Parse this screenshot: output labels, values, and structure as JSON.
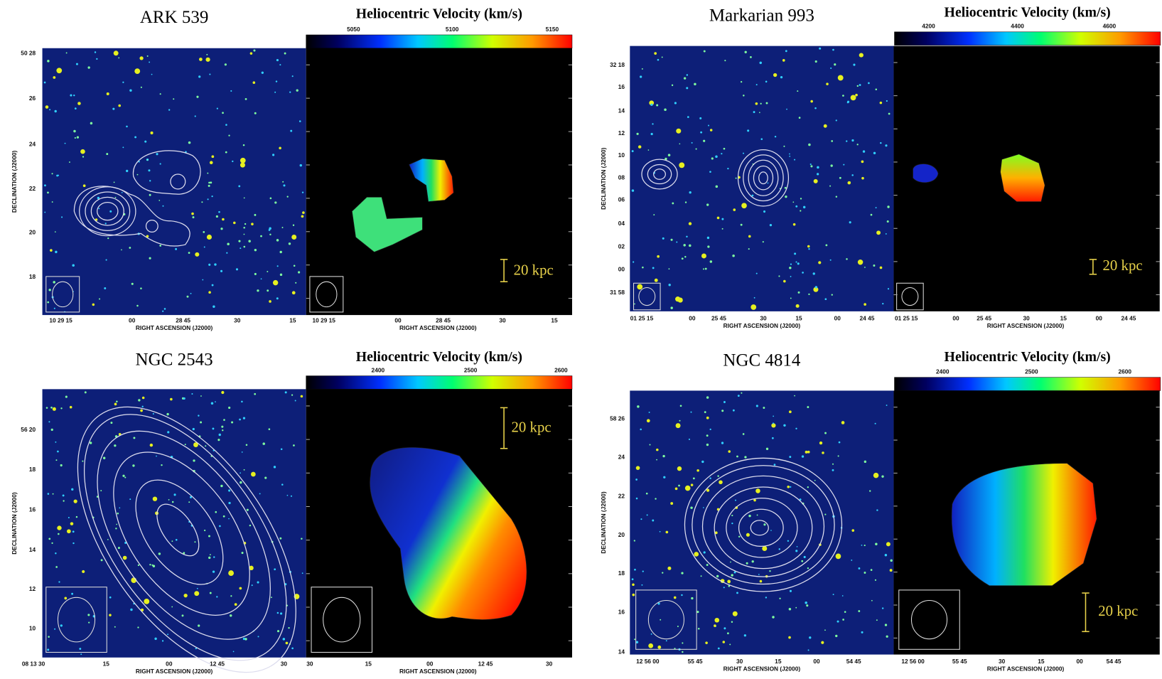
{
  "panels": [
    {
      "title": "ARK 539",
      "colorbar": {
        "title": "Heliocentric Velocity (km/s)",
        "ticks": [
          "5050",
          "5100",
          "5150"
        ]
      },
      "dec_label": "DECLINATION (J2000)",
      "dec_ticks": [
        "50 28",
        "26",
        "24",
        "22",
        "20",
        "18"
      ],
      "ra_label_optical": "RIGHT ASCENSION (J2000)",
      "ra_ticks_optical": [
        "10 29 15",
        "00",
        "28 45",
        "30",
        "15"
      ],
      "ra_label_velocity": "RIGHT ASCENSION (J2000)",
      "ra_ticks_velocity": [
        "10 29 15",
        "00",
        "28 45",
        "30",
        "15"
      ],
      "scale_bar": "20 kpc"
    },
    {
      "title": "Markarian 993",
      "colorbar": {
        "title": "Heliocentric Velocity (km/s)",
        "ticks": [
          "4200",
          "4400",
          "4600"
        ]
      },
      "dec_label": "DECLINATION (J2000)",
      "dec_ticks": [
        "32 18",
        "16",
        "14",
        "12",
        "10",
        "08",
        "06",
        "04",
        "02",
        "00",
        "31 58"
      ],
      "ra_label_optical": "RIGHT ASCENSION (J2000)",
      "ra_ticks_optical": [
        "01 25 15",
        "00",
        "25 45",
        "30",
        "15",
        "00",
        "24 45"
      ],
      "ra_label_velocity": "RIGHT ASCENSION (J2000)",
      "ra_ticks_velocity": [
        "01 25 15",
        "00",
        "25 45",
        "30",
        "15",
        "00",
        "24 45"
      ],
      "scale_bar": "20 kpc"
    },
    {
      "title": "NGC 2543",
      "colorbar": {
        "title": "Heliocentric Velocity (km/s)",
        "ticks": [
          "2400",
          "2500",
          "2600"
        ]
      },
      "dec_label": "DECLINATION (J2000)",
      "dec_ticks": [
        "56 20",
        "18",
        "16",
        "14",
        "12",
        "10"
      ],
      "ra_label_optical": "RIGHT ASCENSION (J2000)",
      "ra_ticks_optical": [
        "08 13 30",
        "15",
        "00",
        "12 45",
        "30"
      ],
      "ra_label_velocity": "RIGHT ASCENSION (J2000)",
      "ra_ticks_velocity": [
        "30",
        "15",
        "00",
        "12 45",
        "30"
      ],
      "scale_bar": "20 kpc"
    },
    {
      "title": "NGC 4814",
      "colorbar": {
        "title": "Heliocentric Velocity (km/s)",
        "ticks": [
          "2400",
          "2500",
          "2600"
        ]
      },
      "dec_label": "DECLINATION (J2000)",
      "dec_ticks": [
        "58 26",
        "24",
        "22",
        "20",
        "18",
        "16",
        "14"
      ],
      "ra_label_optical": "RIGHT ASCENSION (J2000)",
      "ra_ticks_optical": [
        "12 56 00",
        "55 45",
        "30",
        "15",
        "00",
        "54 45"
      ],
      "ra_label_velocity": "RIGHT ASCENSION (J2000)",
      "ra_ticks_velocity": [
        "12 56 00",
        "55 45",
        "30",
        "15",
        "00",
        "54 45"
      ],
      "scale_bar": "20 kpc"
    }
  ]
}
